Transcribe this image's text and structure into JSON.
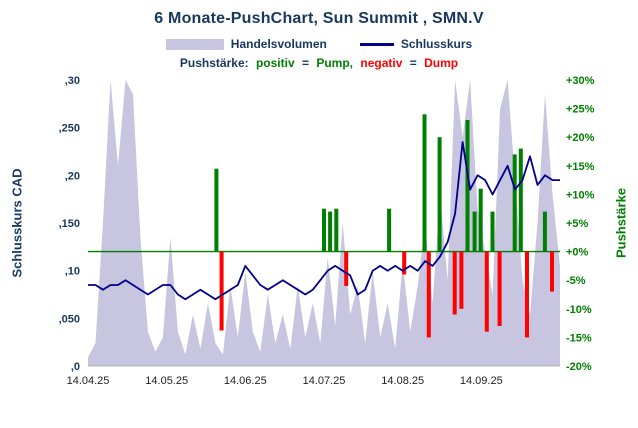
{
  "title": "6 Monate-PushChart, Sun Summit , SMN.V",
  "legend": {
    "volume_label": "Handelsvolumen",
    "close_label": "Schlusskurs",
    "push_prefix": "Pushstärke:",
    "positiv": "positiv",
    "eq1": "=",
    "pump": "Pump,",
    "negativ": "negativ",
    "eq2": "=",
    "dump": "Dump"
  },
  "colors": {
    "volume": "#c7c5df",
    "close": "#00008b",
    "pump": "#008000",
    "dump": "#ff0000",
    "navy": "#17375e"
  },
  "axes": {
    "left_label": "Schlusskurs CAD",
    "right_label": "Pushstärke",
    "left_ticks": [
      ",30",
      ",250",
      ",20",
      ",150",
      ",10",
      ",050",
      ",0"
    ],
    "right_ticks": [
      "+30%",
      "+25%",
      "+20%",
      "+15%",
      "+10%",
      "+5%",
      "+0%",
      "-5%",
      "-10%",
      "-15%",
      "-20%"
    ],
    "x_ticks": [
      "14.04.25",
      "14.05.25",
      "14.06.25",
      "14.07.25",
      "14.08.25",
      "14.09.25"
    ]
  },
  "chart_data": {
    "type": "composite",
    "title": "6 Monate-PushChart, Sun Summit , SMN.V",
    "left_axis": {
      "label": "Schlusskurs CAD",
      "min": 0,
      "max": 0.3
    },
    "right_axis": {
      "label": "Pushstärke",
      "min": -20,
      "max": 30,
      "unit": "%"
    },
    "zero_percent_price": 0.12,
    "x_tick_positions": [
      0,
      0.1667,
      0.3333,
      0.5,
      0.6667,
      0.8333
    ],
    "series": {
      "volume": {
        "name": "Handelsvolumen",
        "scale": "fraction_of_plot_height",
        "values": [
          0.03,
          0.08,
          0.5,
          1.0,
          0.7,
          1.0,
          0.95,
          0.45,
          0.12,
          0.05,
          0.1,
          0.45,
          0.12,
          0.04,
          0.18,
          0.06,
          0.22,
          0.08,
          0.04,
          0.28,
          0.1,
          0.33,
          0.12,
          0.05,
          0.25,
          0.08,
          0.18,
          0.06,
          0.28,
          0.1,
          0.22,
          0.08,
          0.38,
          0.14,
          0.5,
          0.18,
          0.28,
          0.08,
          0.33,
          0.1,
          0.22,
          0.06,
          0.36,
          0.12,
          0.28,
          0.5,
          0.22,
          0.6,
          0.3,
          1.0,
          0.8,
          1.0,
          0.55,
          0.4,
          0.25,
          0.9,
          1.0,
          0.65,
          0.3,
          0.18,
          0.5,
          0.95,
          0.6,
          0.35
        ]
      },
      "close": {
        "name": "Schlusskurs",
        "unit": "CAD",
        "values": [
          0.085,
          0.085,
          0.08,
          0.085,
          0.085,
          0.09,
          0.085,
          0.08,
          0.075,
          0.08,
          0.085,
          0.085,
          0.075,
          0.07,
          0.075,
          0.08,
          0.075,
          0.07,
          0.075,
          0.08,
          0.085,
          0.105,
          0.095,
          0.085,
          0.08,
          0.085,
          0.09,
          0.085,
          0.08,
          0.075,
          0.08,
          0.09,
          0.1,
          0.105,
          0.1,
          0.095,
          0.075,
          0.08,
          0.1,
          0.105,
          0.1,
          0.105,
          0.1,
          0.105,
          0.1,
          0.11,
          0.105,
          0.115,
          0.13,
          0.16,
          0.235,
          0.185,
          0.2,
          0.195,
          0.18,
          0.195,
          0.21,
          0.185,
          0.195,
          0.22,
          0.19,
          0.2,
          0.195,
          0.195
        ]
      },
      "push": [
        {
          "x": 0.272,
          "v": 14.5
        },
        {
          "x": 0.283,
          "v": -13.8
        },
        {
          "x": 0.5,
          "v": 7.5
        },
        {
          "x": 0.513,
          "v": 7.0
        },
        {
          "x": 0.526,
          "v": 7.5
        },
        {
          "x": 0.547,
          "v": -6.0
        },
        {
          "x": 0.638,
          "v": 7.5
        },
        {
          "x": 0.67,
          "v": -4.0
        },
        {
          "x": 0.713,
          "v": 24.0
        },
        {
          "x": 0.722,
          "v": -15.0
        },
        {
          "x": 0.745,
          "v": 20.0
        },
        {
          "x": 0.777,
          "v": -11.0
        },
        {
          "x": 0.791,
          "v": -10.0
        },
        {
          "x": 0.804,
          "v": 23.0
        },
        {
          "x": 0.819,
          "v": 7.0
        },
        {
          "x": 0.832,
          "v": 11.0
        },
        {
          "x": 0.845,
          "v": -14.0
        },
        {
          "x": 0.857,
          "v": 7.0
        },
        {
          "x": 0.872,
          "v": -13.0
        },
        {
          "x": 0.904,
          "v": 17.0
        },
        {
          "x": 0.917,
          "v": 18.0
        },
        {
          "x": 0.93,
          "v": -15.0
        },
        {
          "x": 0.968,
          "v": 7.0
        },
        {
          "x": 0.983,
          "v": -7.0
        }
      ]
    }
  }
}
